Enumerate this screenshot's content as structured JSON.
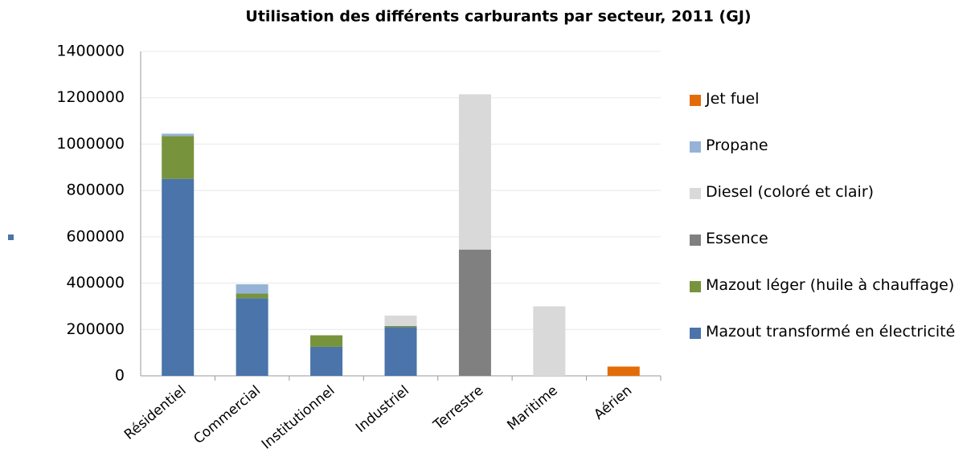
{
  "chart_data": {
    "type": "stacked_bar",
    "title": "Utilisation des différents carburants par secteur, 2011 (GJ)",
    "categories": [
      "Résidentiel",
      "Commercial",
      "Institutionnel",
      "Industriel",
      "Terrestre",
      "Maritime",
      "Aérien"
    ],
    "series": [
      {
        "name": "Mazout transformé en électricité",
        "color": "#4a74aa",
        "values": [
          850000,
          335000,
          125000,
          210000,
          null,
          null,
          null
        ]
      },
      {
        "name": "Mazout léger (huile à chauffage)",
        "color": "#77933c",
        "values": [
          185000,
          20000,
          50000,
          5000,
          null,
          null,
          null
        ]
      },
      {
        "name": "Essence",
        "color": "#808080",
        "values": [
          null,
          null,
          null,
          null,
          545000,
          null,
          null
        ]
      },
      {
        "name": "Diesel (coloré et clair)",
        "color": "#d9d9d9",
        "values": [
          null,
          null,
          null,
          45000,
          670000,
          300000,
          null
        ]
      },
      {
        "name": "Propane",
        "color": "#95b3d7",
        "values": [
          10000,
          40000,
          null,
          null,
          null,
          null,
          null
        ]
      },
      {
        "name": "Jet fuel",
        "color": "#e36c09",
        "values": [
          null,
          null,
          null,
          null,
          null,
          null,
          40000
        ]
      }
    ],
    "ylim": [
      0,
      1400000
    ],
    "yticks": [
      0,
      200000,
      400000,
      600000,
      800000,
      1000000,
      1200000,
      1400000
    ],
    "grid": true
  }
}
